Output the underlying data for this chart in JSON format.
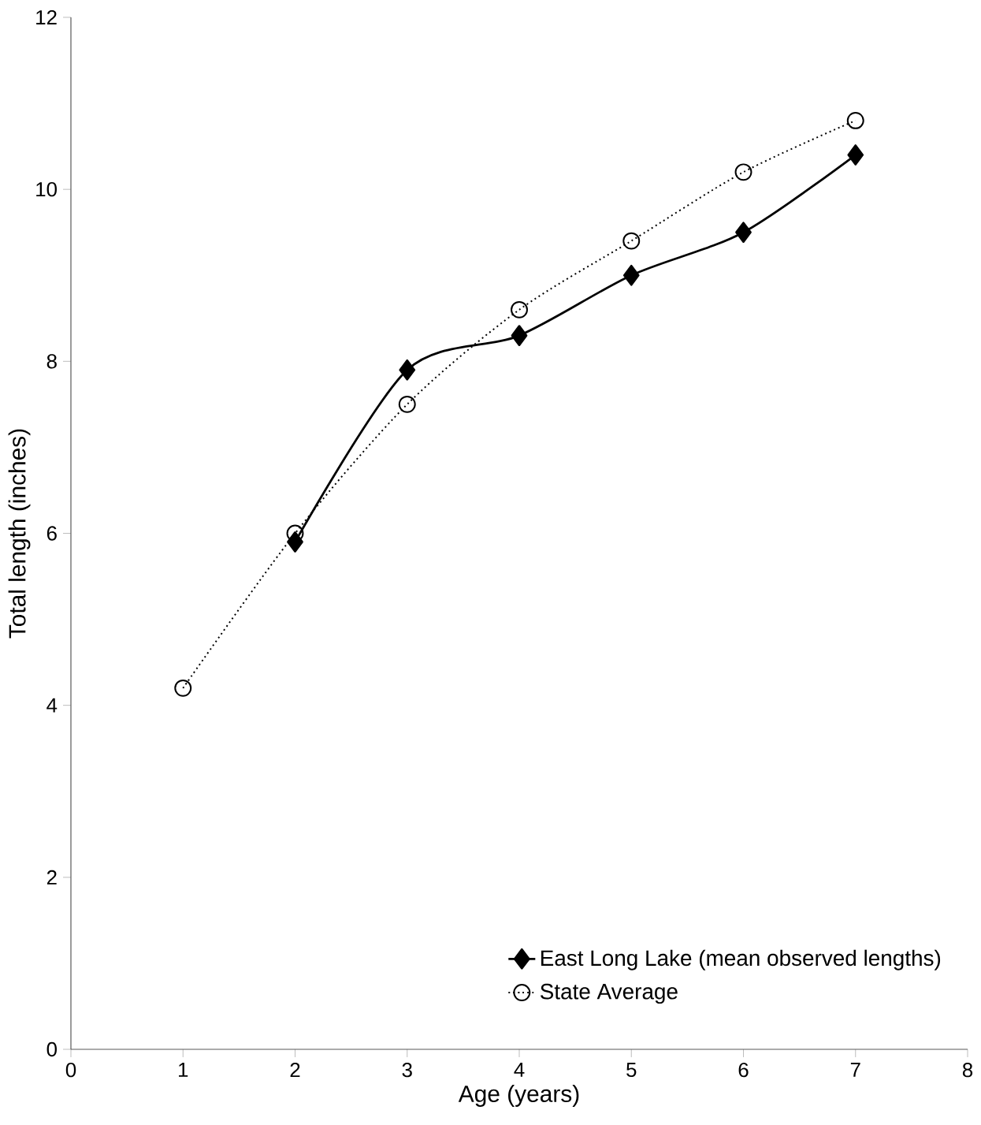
{
  "chart_data": {
    "type": "line",
    "xlabel": "Age (years)",
    "ylabel": "Total length (inches)",
    "xlim": [
      0,
      8
    ],
    "xticks": [
      0,
      1,
      2,
      3,
      4,
      5,
      6,
      7,
      8
    ],
    "ylim": [
      0,
      12
    ],
    "yticks": [
      0,
      2,
      4,
      6,
      8,
      10,
      12
    ],
    "grid": false,
    "legend": "bottom right",
    "series": [
      {
        "name": "East Long Lake (mean observed lengths)",
        "color": "#000000",
        "x": [
          2,
          3,
          4,
          5,
          6,
          7
        ],
        "values": [
          5.9,
          7.9,
          8.3,
          9.0,
          9.5,
          10.4
        ],
        "marker": "diamond",
        "line_style": "solid"
      },
      {
        "name": "State Average",
        "color": "#000000",
        "x": [
          1,
          2,
          3,
          4,
          5,
          6,
          7
        ],
        "values": [
          4.2,
          6.0,
          7.5,
          8.6,
          9.4,
          10.2,
          10.8
        ],
        "marker": "circle",
        "line_style": "dotted"
      }
    ]
  }
}
